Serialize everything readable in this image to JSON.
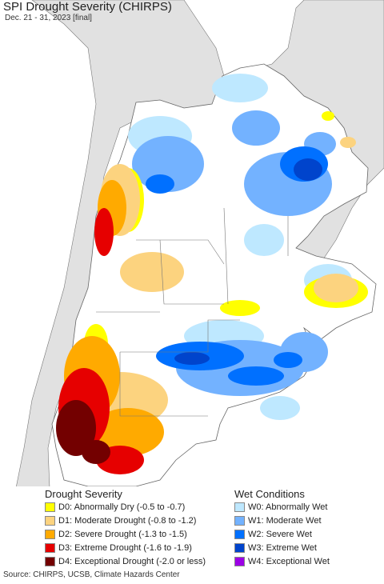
{
  "header": {
    "title": "SPI Drought Severity (CHIRPS)",
    "subtitle": "Dec. 21 - 31, 2023 [final]"
  },
  "legend": {
    "drought_title": "Drought Severity",
    "wet_title": "Wet Conditions",
    "drought_items": [
      {
        "label": "D0: Abnormally Dry (-0.5 to -0.7)",
        "color": "#ffff00"
      },
      {
        "label": "D1: Moderate Drought (-0.8 to -1.2)",
        "color": "#fcd37f"
      },
      {
        "label": "D2: Severe Drought (-1.3 to -1.5)",
        "color": "#ffaa00"
      },
      {
        "label": "D3: Extreme Drought (-1.6 to -1.9)",
        "color": "#e60000"
      },
      {
        "label": "D4: Exceptional Drought (-2.0 or less)",
        "color": "#730000"
      }
    ],
    "wet_items": [
      {
        "label": "W0: Abnormally Wet",
        "color": "#bee8ff"
      },
      {
        "label": "W1: Moderate Wet",
        "color": "#73b2ff"
      },
      {
        "label": "W2: Severe Wet",
        "color": "#0070ff"
      },
      {
        "label": "W3: Extreme Wet",
        "color": "#0044cc"
      },
      {
        "label": "W4: Exceptional Wet",
        "color": "#9c00e6"
      }
    ]
  },
  "colors": {
    "land": "#ffffff",
    "non_region": "#e1e1e1",
    "ocean": "#ffffff",
    "border": "#555555"
  },
  "source": "Source: CHIRPS, UCSB, Climate Hazards Center"
}
